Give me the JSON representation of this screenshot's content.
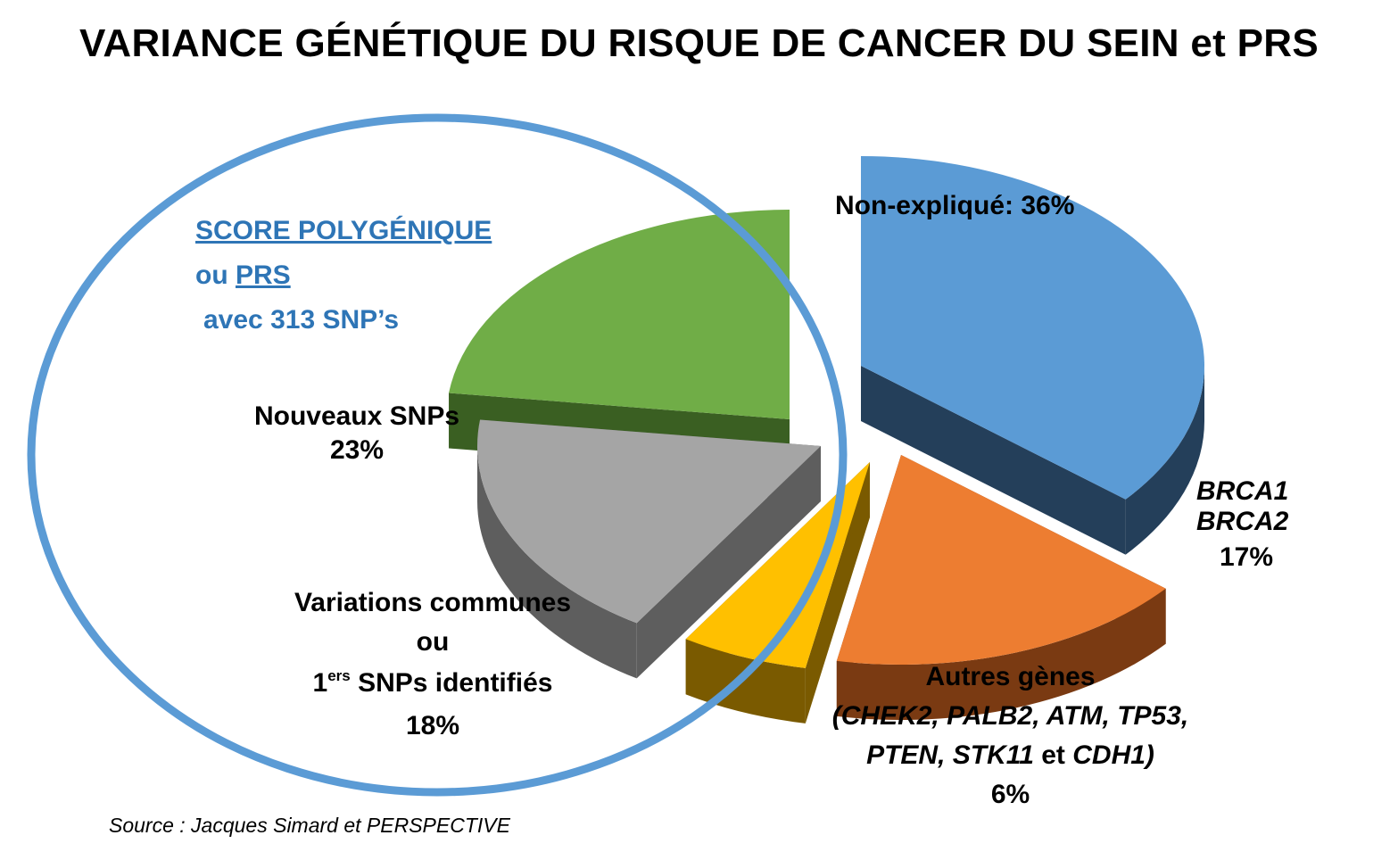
{
  "title": "VARIANCE GÉNÉTIQUE DU RISQUE DE CANCER DU SEIN et PRS",
  "prs_box": {
    "line1": "SCORE POLYGÉNIQUE",
    "line2_prefix": "ou ",
    "line2_link": "PRS",
    "line3": "avec 313 SNP’s"
  },
  "labels": {
    "unexplained": "Non-expliqué: 36%",
    "new_snps_name": "Nouveaux SNPs",
    "new_snps_pct": "23%",
    "common_line1": "Variations communes",
    "common_line2": "ou",
    "common_line3_num": "1",
    "common_line3_sup": "ers",
    "common_line3_rest": " SNPs identifiés",
    "common_pct": "18%",
    "brca_line1": "BRCA1",
    "brca_line2": "BRCA2",
    "brca_pct": "17%",
    "other_line1": "Autres gènes",
    "other_line2": "(CHEK2, PALB2, ATM, TP53,",
    "other_line3_italic1": "PTEN, STK11",
    "other_line3_plain": " et ",
    "other_line3_italic2": "CDH1)",
    "other_pct": "6%"
  },
  "source": "Source : Jacques Simard et PERSPECTIVE",
  "chart_data": {
    "type": "pie",
    "title": "VARIANCE GÉNÉTIQUE DU RISQUE DE CANCER DU SEIN et PRS",
    "exploded_3d": true,
    "categories": [
      "Non-expliqué",
      "BRCA1 BRCA2",
      "Autres gènes",
      "Variations communes ou 1ers SNPs identifiés",
      "Nouveaux SNPs"
    ],
    "values": [
      36,
      17,
      6,
      18,
      23
    ],
    "unit": "%",
    "colors": [
      "#5b9bd5",
      "#ed7d31",
      "#ffc000",
      "#a5a5a5",
      "#70ad47"
    ],
    "side_colors": [
      "#243f5a",
      "#7a3a12",
      "#7a5a00",
      "#5e5e5e",
      "#3a5f22"
    ],
    "highlight": {
      "label": "SCORE POLYGÉNIQUE ou PRS avec 313 SNP’s",
      "groups": [
        "Nouveaux SNPs",
        "Variations communes ou 1ers SNPs identifiés"
      ],
      "color": "#5b9bd5"
    }
  }
}
